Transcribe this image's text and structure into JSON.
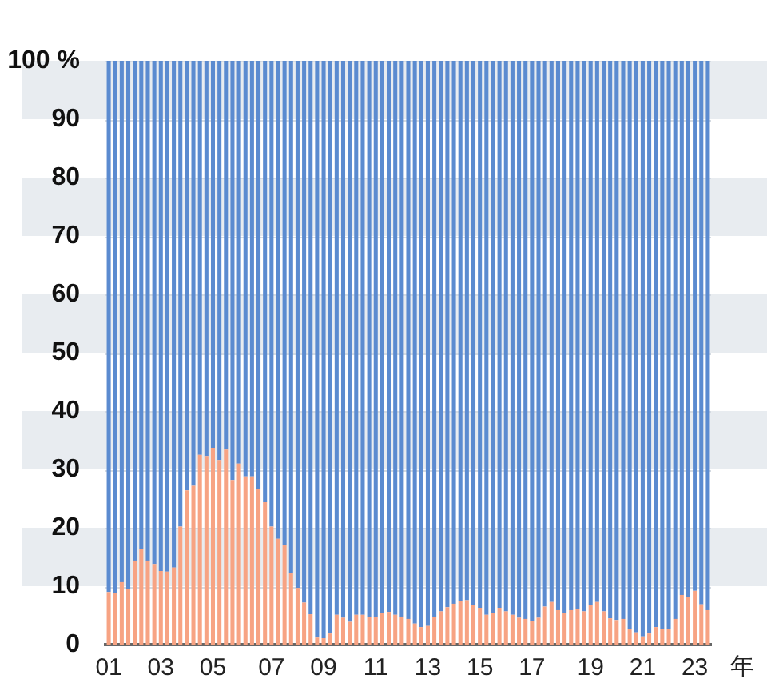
{
  "chart_data": {
    "type": "bar",
    "stacked": true,
    "xlabel": "年",
    "categories": [
      "01",
      null,
      null,
      null,
      null,
      null,
      null,
      null,
      "03",
      null,
      null,
      null,
      null,
      null,
      null,
      null,
      "05",
      null,
      null,
      null,
      null,
      null,
      null,
      null,
      null,
      "07",
      null,
      null,
      null,
      null,
      null,
      null,
      null,
      "09",
      null,
      null,
      null,
      null,
      null,
      null,
      null,
      "11",
      null,
      null,
      null,
      null,
      null,
      null,
      null,
      "13",
      null,
      null,
      null,
      null,
      null,
      null,
      null,
      "15",
      null,
      null,
      null,
      null,
      null,
      null,
      null,
      "17",
      null,
      null,
      null,
      null,
      null,
      null,
      null,
      null,
      "19",
      null,
      null,
      null,
      null,
      null,
      null,
      null,
      "21",
      null,
      null,
      null,
      null,
      null,
      null,
      null,
      "23",
      null,
      null
    ],
    "series": [
      {
        "color": "#f7a383",
        "values": [
          9.0,
          8.9,
          10.7,
          9.5,
          14.4,
          16.3,
          14.4,
          13.8,
          12.6,
          12.5,
          13.2,
          20.2,
          26.4,
          27.2,
          32.5,
          32.3,
          33.7,
          31.6,
          33.4,
          28.2,
          31.0,
          28.8,
          28.8,
          26.6,
          24.4,
          20.2,
          18.1,
          17.0,
          12.2,
          9.7,
          7.2,
          5.2,
          1.2,
          1.1,
          1.9,
          5.1,
          4.6,
          3.9,
          5.1,
          5.1,
          4.8,
          4.8,
          5.4,
          5.6,
          5.1,
          4.8,
          4.4,
          3.6,
          3.0,
          3.2,
          4.8,
          5.7,
          6.4,
          7.0,
          7.5,
          7.6,
          6.8,
          6.3,
          5.1,
          5.4,
          6.3,
          5.7,
          5.1,
          4.6,
          4.4,
          4.1,
          4.6,
          6.5,
          7.3,
          5.9,
          5.4,
          5.9,
          6.1,
          5.7,
          6.8,
          7.3,
          5.7,
          4.5,
          4.2,
          4.4,
          2.6,
          2.1,
          1.4,
          1.9,
          3.0,
          2.6,
          2.6,
          4.4,
          8.5,
          8.2,
          9.2,
          6.9,
          5.9
        ]
      },
      {
        "color": "#5b8bd0",
        "values": [
          91.0,
          91.1,
          89.3,
          90.5,
          85.6,
          83.7,
          85.6,
          86.2,
          87.4,
          87.5,
          86.8,
          79.8,
          73.6,
          72.8,
          67.5,
          67.7,
          66.3,
          68.4,
          66.6,
          71.8,
          69.0,
          71.2,
          71.2,
          73.4,
          75.6,
          79.8,
          81.9,
          83.0,
          87.8,
          90.3,
          92.8,
          94.8,
          98.8,
          98.9,
          98.1,
          94.9,
          95.4,
          96.1,
          94.9,
          94.9,
          95.2,
          95.2,
          94.6,
          94.4,
          94.9,
          95.2,
          95.6,
          96.4,
          97.0,
          96.8,
          95.2,
          94.3,
          93.6,
          93.0,
          92.5,
          92.4,
          93.2,
          93.7,
          94.9,
          94.6,
          93.7,
          94.3,
          94.9,
          95.4,
          95.6,
          95.9,
          95.4,
          93.5,
          92.7,
          94.1,
          94.6,
          94.1,
          93.9,
          94.3,
          93.2,
          92.7,
          94.3,
          95.5,
          95.8,
          95.6,
          97.4,
          97.9,
          98.6,
          98.1,
          97.0,
          97.4,
          97.4,
          95.6,
          91.5,
          91.8,
          90.8,
          93.1,
          94.1
        ]
      }
    ],
    "ylim": [
      0,
      100
    ],
    "yticks": [
      0,
      10,
      20,
      30,
      40,
      50,
      60,
      70,
      80,
      90,
      {
        "value": 100,
        "label": "100 %"
      }
    ],
    "grid": "y",
    "legend": false
  }
}
